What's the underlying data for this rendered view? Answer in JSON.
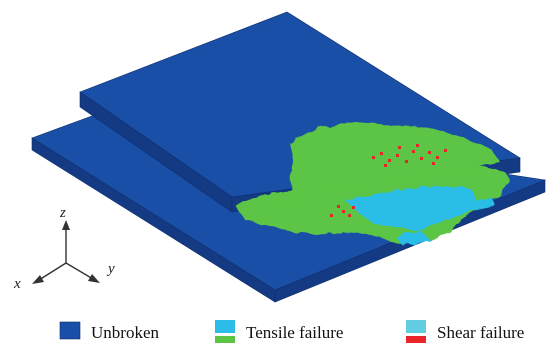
{
  "colors": {
    "unbroken": "#1a4fa8",
    "unbroken_side": "#133a82",
    "unbroken_edge": "#0f2f6e",
    "tensile_cyan": "#2bbde8",
    "tensile_green": "#5cc544",
    "shear_cyan": "#62cde0",
    "shear_red": "#e8262a",
    "axis": "#333333"
  },
  "axes": {
    "x": "x",
    "y": "y",
    "z": "z"
  },
  "legend": {
    "unbroken": "Unbroken",
    "tensile": "Tensile failure",
    "shear": "Shear failure"
  }
}
